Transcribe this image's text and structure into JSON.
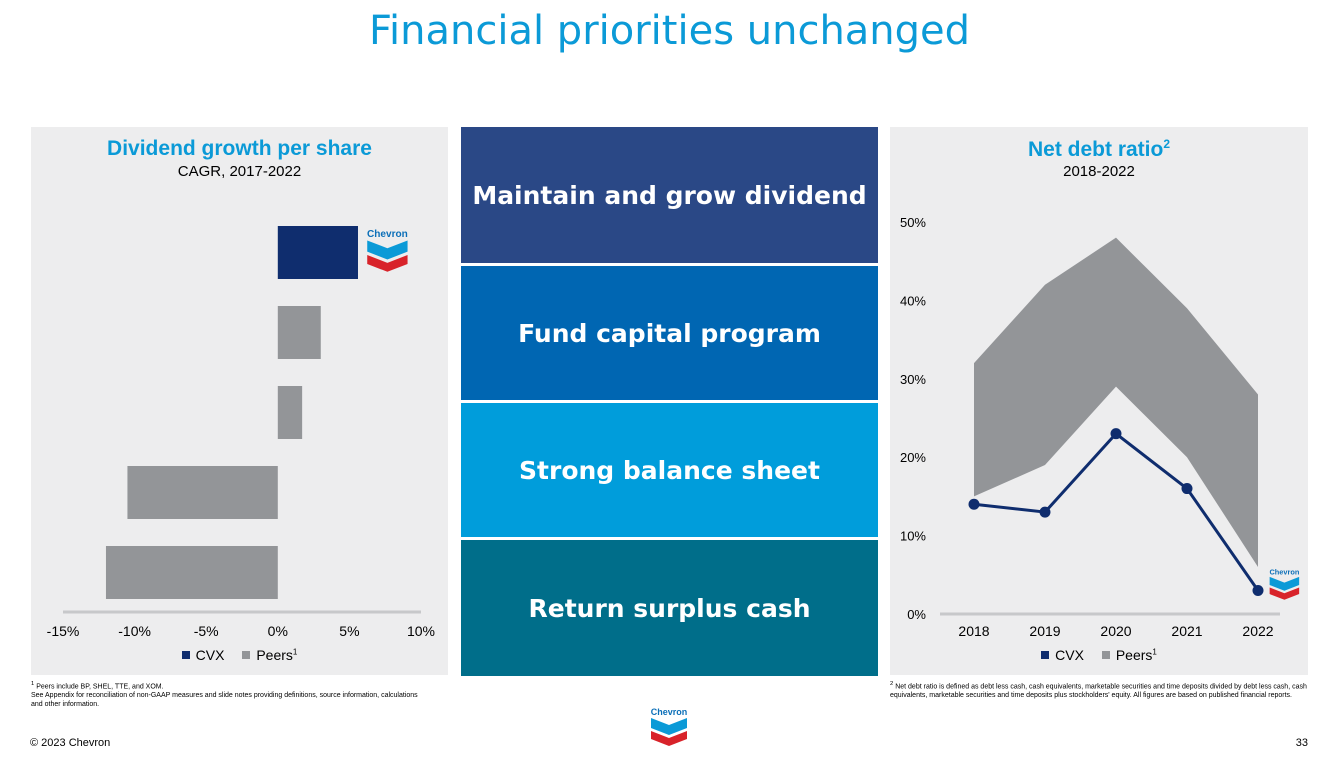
{
  "title": "Financial priorities unchanged",
  "colors": {
    "title": "#0b9ad7",
    "cvx": "#0f2d6e",
    "peers": "#939598",
    "panel_bg": "#ededee"
  },
  "logo_text": "Chevron",
  "priorities": [
    {
      "label": "Maintain and grow dividend",
      "color": "#2a4886"
    },
    {
      "label": "Fund capital program",
      "color": "#0066b2"
    },
    {
      "label": "Strong balance sheet",
      "color": "#009ddb"
    },
    {
      "label": "Return surplus cash",
      "color": "#006e8a"
    }
  ],
  "chart_data": [
    {
      "type": "bar",
      "orientation": "horizontal",
      "title": "Dividend growth per share",
      "subtitle": "CAGR, 2017-2022",
      "x_ticks": [
        "-15%",
        "-10%",
        "-5%",
        "0%",
        "5%",
        "10%"
      ],
      "xlim": [
        -15,
        10
      ],
      "bars": [
        {
          "value": 5.6,
          "series": "CVX"
        },
        {
          "value": 3.0,
          "series": "Peers"
        },
        {
          "value": 1.7,
          "series": "Peers"
        },
        {
          "value": -10.5,
          "series": "Peers"
        },
        {
          "value": -12.0,
          "series": "Peers"
        }
      ],
      "legend": [
        {
          "name": "CVX",
          "marker": "1"
        },
        {
          "name": "Peers",
          "marker": "1",
          "superscript": "1"
        }
      ],
      "legend_position": "bottom"
    },
    {
      "type": "line",
      "title": "Net debt ratio",
      "title_superscript": "2",
      "subtitle": "2018-2022",
      "x": [
        "2018",
        "2019",
        "2020",
        "2021",
        "2022"
      ],
      "y_ticks": [
        "0%",
        "10%",
        "20%",
        "30%",
        "40%",
        "50%"
      ],
      "ylim": [
        0,
        50
      ],
      "series": [
        {
          "name": "CVX",
          "values": [
            14,
            13,
            23,
            16,
            3
          ]
        }
      ],
      "peer_range": {
        "name": "Peers",
        "low": [
          15,
          19,
          29,
          20,
          6
        ],
        "high": [
          32,
          42,
          48,
          39,
          28
        ]
      },
      "legend": [
        {
          "name": "CVX"
        },
        {
          "name": "Peers",
          "superscript": "1"
        }
      ],
      "legend_position": "bottom"
    }
  ],
  "footnotes": {
    "left": {
      "sup": "1",
      "line1": "Peers include BP, SHEL, TTE, and XOM.",
      "line2": "See Appendix for reconciliation of non-GAAP measures and slide notes providing definitions, source information, calculations and other information."
    },
    "right": {
      "sup": "2",
      "line1": "Net debt ratio is defined as debt less cash, cash equivalents, marketable securities and time deposits divided by debt less cash, cash equivalents, marketable securities and time deposits plus stockholders' equity. All figures are based on published financial reports."
    }
  },
  "copyright": "© 2023 Chevron",
  "page_number": "33"
}
